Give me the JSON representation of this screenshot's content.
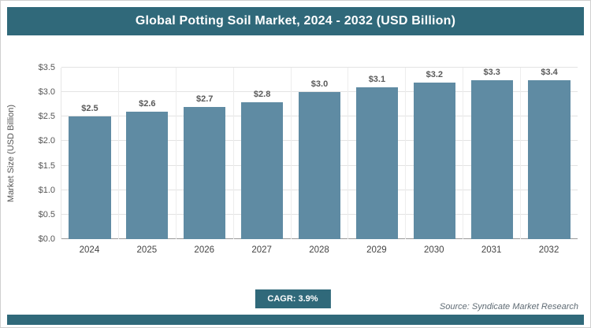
{
  "header": {
    "title": "Global Potting Soil Market, 2024 - 2032 (USD Billion)"
  },
  "chart_data": {
    "type": "bar",
    "title": "Global Potting Soil Market, 2024 - 2032 (USD Billion)",
    "categories": [
      "2024",
      "2025",
      "2026",
      "2027",
      "2028",
      "2029",
      "2030",
      "2031",
      "2032"
    ],
    "values": [
      2.5,
      2.6,
      2.7,
      2.8,
      3.0,
      3.1,
      3.2,
      3.3,
      3.4
    ],
    "value_labels": [
      "$2.5",
      "$2.6",
      "$2.7",
      "$2.8",
      "$3.0",
      "$3.1",
      "$3.2",
      "$3.3",
      "$3.4"
    ],
    "xlabel": "",
    "ylabel": "Market Size (USD Billion)",
    "ylim": [
      0,
      3.5
    ],
    "ytick_labels": [
      "$0.0",
      "$0.5",
      "$1.0",
      "$1.5",
      "$2.0",
      "$2.5",
      "$3.0",
      "$3.5"
    ],
    "grid": true,
    "legend": false,
    "bar_color": "#5f8ba3"
  },
  "footer": {
    "cagr_label": "CAGR: 3.9%",
    "source": "Source: Syndicate Market Research"
  },
  "colors": {
    "accent": "#30697a",
    "bar": "#5f8ba3"
  }
}
